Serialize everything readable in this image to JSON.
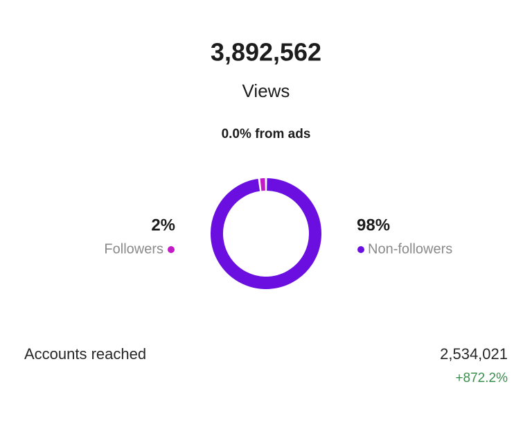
{
  "header": {
    "views_count": "3,892,562",
    "views_label": "Views",
    "ads_note": "0.0% from ads"
  },
  "chart_data": {
    "type": "donut",
    "categories": [
      "Followers",
      "Non-followers"
    ],
    "values": [
      2,
      98
    ],
    "value_labels": [
      "2%",
      "98%"
    ],
    "colors": [
      "#c21ac6",
      "#6a0fe0"
    ]
  },
  "metrics": [
    {
      "label": "Accounts reached",
      "value": "2,534,021",
      "change": "+872.2%"
    }
  ]
}
